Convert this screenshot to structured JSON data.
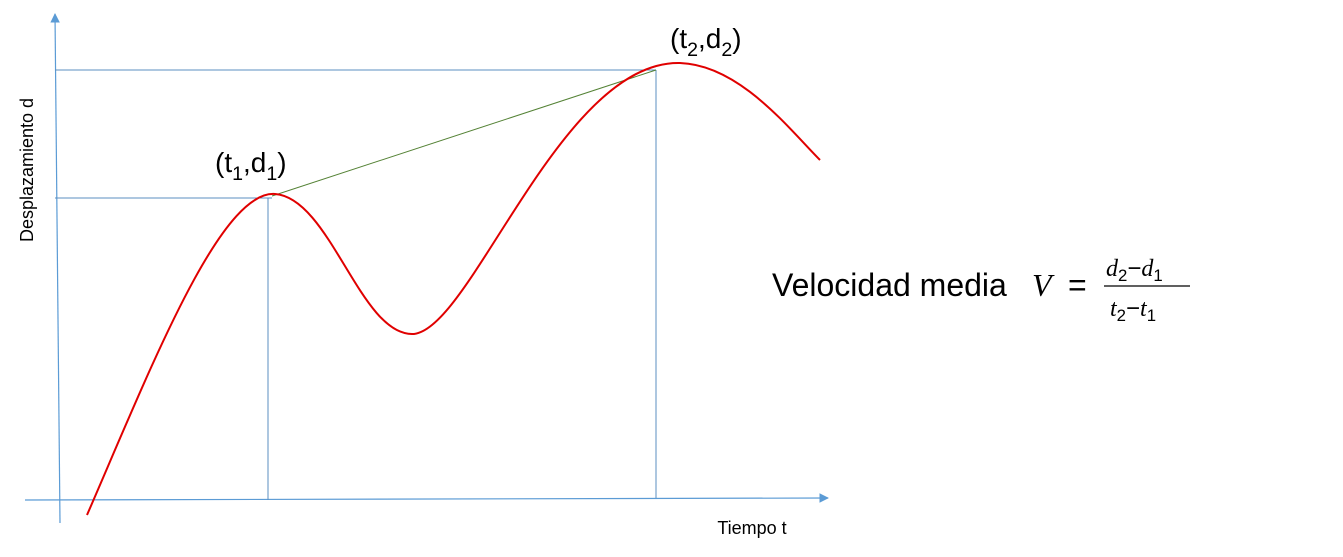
{
  "axes": {
    "y_label": "Desplazamiento d",
    "x_label": "Tiempo t"
  },
  "points": [
    {
      "open": "(t",
      "sub_t": "1",
      "comma": ",d",
      "sub_d": "1",
      "close": ")"
    },
    {
      "open": "(t",
      "sub_t": "2",
      "comma": ",d",
      "sub_d": "2",
      "close": ")"
    }
  ],
  "formula": {
    "label": "Velocidad media",
    "variable": "V",
    "equals": "=",
    "numerator": {
      "a": "d",
      "a_sub": "2",
      "minus": "−",
      "b": "d",
      "b_sub": "1"
    },
    "denominator": {
      "a": "t",
      "a_sub": "2",
      "minus": "−",
      "b": "t",
      "b_sub": "1"
    }
  }
}
